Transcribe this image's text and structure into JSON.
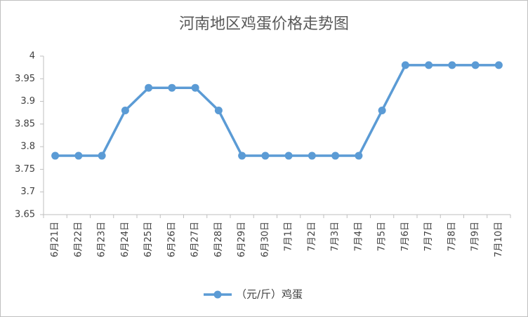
{
  "chart_data": {
    "type": "line",
    "title": "河南地区鸡蛋价格走势图",
    "categories": [
      "6月21日",
      "6月22日",
      "6月23日",
      "6月24日",
      "6月25日",
      "6月26日",
      "6月27日",
      "6月28日",
      "6月29日",
      "6月30日",
      "7月1日",
      "7月2日",
      "7月3日",
      "7月4日",
      "7月5日",
      "7月6日",
      "7月7日",
      "7月8日",
      "7月9日",
      "7月10日"
    ],
    "series": [
      {
        "name": "（元/斤）鸡蛋",
        "color": "#5b9bd5",
        "values": [
          3.78,
          3.78,
          3.78,
          3.88,
          3.93,
          3.93,
          3.93,
          3.88,
          3.78,
          3.78,
          3.78,
          3.78,
          3.78,
          3.78,
          3.88,
          3.98,
          3.98,
          3.98,
          3.98,
          3.98
        ]
      }
    ],
    "ylim": [
      3.65,
      4
    ],
    "yticks": [
      3.65,
      3.7,
      3.75,
      3.8,
      3.85,
      3.9,
      3.95,
      4
    ],
    "grid": false,
    "legend": "bottom"
  }
}
